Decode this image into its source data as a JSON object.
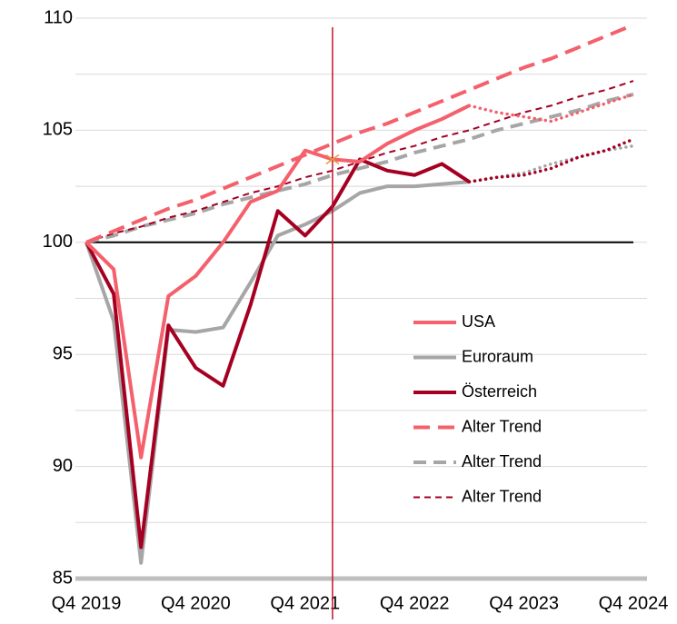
{
  "chart_data": {
    "type": "line",
    "categories": [
      "Q4 2019",
      null,
      null,
      null,
      "Q4 2020",
      null,
      null,
      null,
      "Q4 2021",
      null,
      null,
      null,
      "Q4 2022",
      null,
      null,
      null,
      "Q4 2023",
      null,
      null,
      null,
      "Q4 2024"
    ],
    "series": [
      {
        "name": "USA",
        "color": "#f4606c",
        "style": "solid",
        "values": [
          100,
          98.8,
          90.4,
          97.6,
          98.5,
          100,
          101.8,
          102.3,
          104.1,
          103.7,
          103.6,
          104.4,
          105,
          105.5,
          106.1,
          null,
          null,
          null,
          null,
          null,
          null
        ],
        "forecast": [
          null,
          null,
          null,
          null,
          null,
          null,
          null,
          null,
          null,
          null,
          null,
          null,
          null,
          null,
          106.1,
          105.8,
          105.6,
          105.4,
          105.8,
          106.2,
          106.6
        ]
      },
      {
        "name": "Euroraum",
        "color": "#a6a6a6",
        "style": "solid",
        "values": [
          100,
          96.5,
          85.7,
          96.1,
          96,
          96.2,
          98.2,
          100.3,
          100.8,
          101.4,
          102.2,
          102.5,
          102.5,
          102.6,
          102.7,
          null,
          null,
          null,
          null,
          null,
          null
        ],
        "forecast": [
          null,
          null,
          null,
          null,
          null,
          null,
          null,
          null,
          null,
          null,
          null,
          null,
          null,
          null,
          102.7,
          102.9,
          103.1,
          103.5,
          103.8,
          104.1,
          104.3
        ]
      },
      {
        "name": "Österreich",
        "color": "#a50021",
        "style": "solid",
        "values": [
          100,
          97.7,
          86.4,
          96.3,
          94.4,
          93.6,
          97.2,
          101.4,
          100.3,
          101.6,
          103.7,
          103.2,
          103,
          103.5,
          102.7,
          null,
          null,
          null,
          null,
          null,
          null
        ],
        "forecast": [
          null,
          null,
          null,
          null,
          null,
          null,
          null,
          null,
          null,
          null,
          null,
          null,
          null,
          null,
          102.7,
          102.9,
          103,
          103.3,
          103.8,
          104.1,
          104.6
        ]
      },
      {
        "name": "Alter Trend",
        "color": "#f4606c",
        "style": "dash-long",
        "values": [
          100,
          100.5,
          101,
          101.5,
          101.9,
          102.4,
          102.9,
          103.4,
          103.9,
          104.4,
          104.9,
          105.3,
          105.8,
          106.3,
          106.8,
          107.3,
          107.8,
          108.2,
          108.7,
          109.2,
          109.7
        ]
      },
      {
        "name": "Alter Trend",
        "color": "#a6a6a6",
        "style": "dash-thick",
        "values": [
          100,
          100.3,
          100.7,
          101,
          101.3,
          101.7,
          102,
          102.3,
          102.6,
          103,
          103.3,
          103.6,
          104,
          104.3,
          104.6,
          105,
          105.3,
          105.6,
          105.9,
          106.3,
          106.6
        ]
      },
      {
        "name": "Alter Trend",
        "color": "#a50021",
        "style": "dash-thin",
        "values": [
          100,
          100.4,
          100.7,
          101.1,
          101.4,
          101.8,
          102.2,
          102.5,
          102.9,
          103.2,
          103.6,
          104,
          104.3,
          104.7,
          105,
          105.4,
          105.8,
          106.1,
          106.5,
          106.8,
          107.2
        ]
      }
    ],
    "ylim": [
      85,
      110
    ],
    "yticks": [
      85,
      90,
      95,
      100,
      105,
      110
    ],
    "minor_grid": [
      87.5,
      92.5,
      97.5,
      102.5,
      107.5
    ],
    "reference_line": 100,
    "vline_index": 9,
    "vline_color": "#c0142c",
    "grid": true
  }
}
